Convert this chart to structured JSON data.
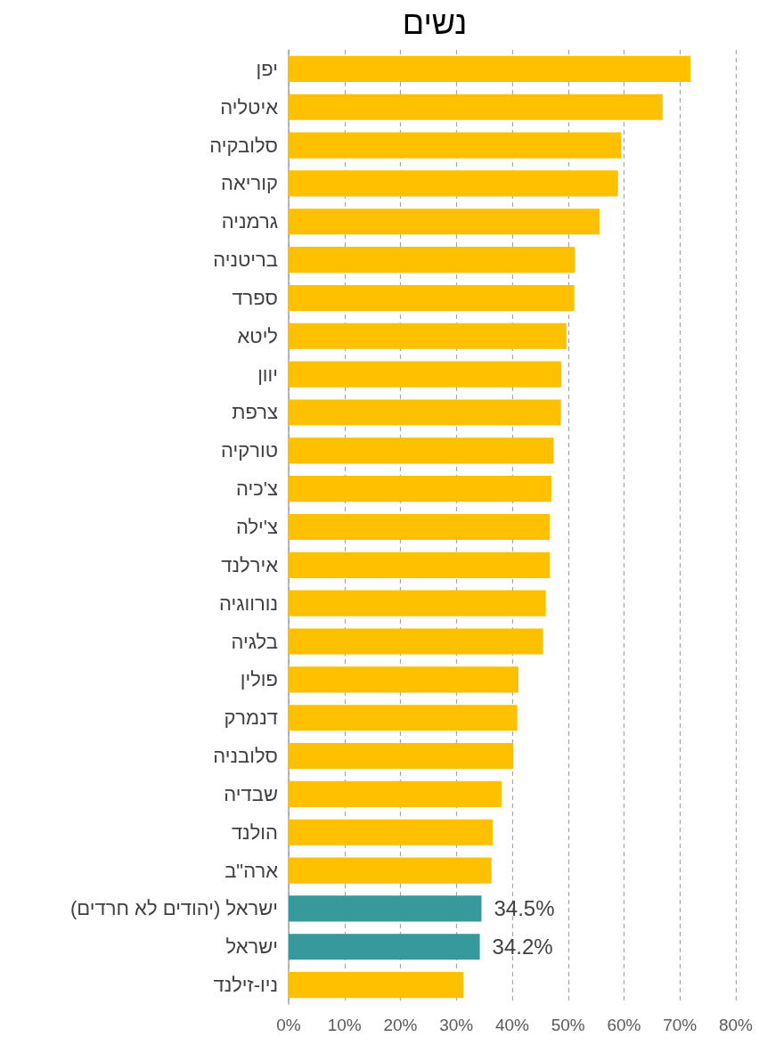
{
  "chart_data": {
    "type": "bar",
    "orientation": "horizontal",
    "title": "נשים",
    "categories": [
      "יפן",
      "איטליה",
      "סלובקיה",
      "קוריאה",
      "גרמניה",
      "בריטניה",
      "ספרד",
      "ליטא",
      "יוון",
      "צרפת",
      "טורקיה",
      "צ'כיה",
      "צ'ילה",
      "אירלנד",
      "נורווגיה",
      "בלגיה",
      "פולין",
      "דנמרק",
      "סלובניה",
      "שבדיה",
      "הולנד",
      "ארה\"ב",
      "ישראל (יהודים לא חרדים)",
      "ישראל",
      "ניו-זילנד"
    ],
    "values": [
      71.9,
      66.9,
      59.5,
      58.9,
      55.6,
      51.2,
      51.1,
      49.7,
      48.8,
      48.7,
      47.4,
      47.0,
      46.7,
      46.7,
      46.0,
      45.5,
      41.1,
      40.9,
      40.2,
      38.1,
      36.5,
      36.3,
      34.5,
      34.2,
      31.3
    ],
    "colors": [
      "#ffc000",
      "#ffc000",
      "#ffc000",
      "#ffc000",
      "#ffc000",
      "#ffc000",
      "#ffc000",
      "#ffc000",
      "#ffc000",
      "#ffc000",
      "#ffc000",
      "#ffc000",
      "#ffc000",
      "#ffc000",
      "#ffc000",
      "#ffc000",
      "#ffc000",
      "#ffc000",
      "#ffc000",
      "#ffc000",
      "#ffc000",
      "#ffc000",
      "#38999c",
      "#38999c",
      "#ffc000"
    ],
    "value_labels": [
      null,
      null,
      null,
      null,
      null,
      null,
      null,
      null,
      null,
      null,
      null,
      null,
      null,
      null,
      null,
      null,
      null,
      null,
      null,
      null,
      null,
      null,
      "34.5%",
      "34.2%",
      null
    ],
    "xlim": [
      0,
      80
    ],
    "xticks": [
      {
        "value": 0,
        "label": "0%"
      },
      {
        "value": 10,
        "label": "10%"
      },
      {
        "value": 20,
        "label": "20%"
      },
      {
        "value": 30,
        "label": "30%"
      },
      {
        "value": 40,
        "label": "40%"
      },
      {
        "value": 50,
        "label": "50%"
      },
      {
        "value": 60,
        "label": "60%"
      },
      {
        "value": 70,
        "label": "70%"
      },
      {
        "value": 80,
        "label": "80%"
      }
    ],
    "grid": "x"
  }
}
